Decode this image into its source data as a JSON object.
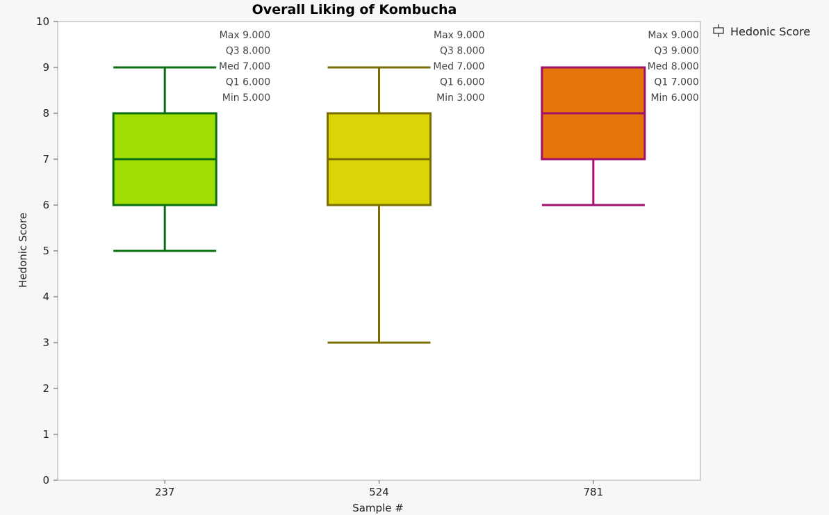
{
  "chart_data": {
    "type": "box",
    "title": "Overall Liking of Kombucha",
    "xlabel": "Sample #",
    "ylabel": "Hedonic Score",
    "ylim": [
      0,
      10
    ],
    "yticks": [
      0,
      1,
      2,
      3,
      4,
      5,
      6,
      7,
      8,
      9,
      10
    ],
    "categories": [
      "237",
      "524",
      "781"
    ],
    "legend": {
      "label": "Hedonic Score",
      "position": "top-right, outside plot"
    },
    "series": [
      {
        "category": "237",
        "max": 9,
        "q3": 8,
        "median": 7,
        "q1": 6,
        "min": 5,
        "fill": "#a0de05",
        "stroke": "#0b6e12",
        "labels": {
          "max": "Max 9.000",
          "q3": "Q3  8.000",
          "med": "Med 7.000",
          "q1": "Q1  6.000",
          "min": "Min 5.000"
        }
      },
      {
        "category": "524",
        "max": 9,
        "q3": 8,
        "median": 7,
        "q1": 6,
        "min": 3,
        "fill": "#dbd407",
        "stroke": "#7a6e00",
        "labels": {
          "max": "Max 9.000",
          "q3": "Q3  8.000",
          "med": "Med 7.000",
          "q1": "Q1  6.000",
          "min": "Min 3.000"
        }
      },
      {
        "category": "781",
        "max": 9,
        "q3": 9,
        "median": 8,
        "q1": 7,
        "min": 6,
        "fill": "#e5740a",
        "stroke": "#a30f6a",
        "labels": {
          "max": "Max 9.000",
          "q3": "Q3  9.000",
          "med": "Med 8.000",
          "q1": "Q1  7.000",
          "min": "Min 6.000"
        }
      }
    ],
    "grid": false
  }
}
